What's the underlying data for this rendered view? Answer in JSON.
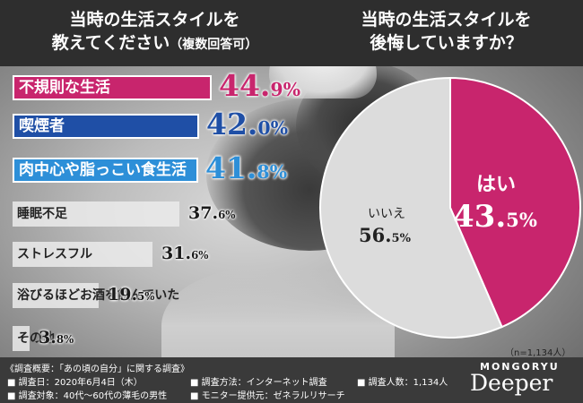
{
  "header": {
    "left_line1": "当時の生活スタイルを",
    "left_line2": "教えてください",
    "left_note": "（複数回答可）",
    "right_line1": "当時の生活スタイルを",
    "right_line2": "後悔していますか？"
  },
  "chart_data": [
    {
      "type": "bar",
      "orientation": "horizontal",
      "title": "当時の生活スタイルを教えてください（複数回答可）",
      "categories": [
        "不規則な生活",
        "喫煙者",
        "肉中心や脂っこい食生活",
        "睡眠不足",
        "ストレスフル",
        "浴びるほどお酒を飲んでいた",
        "その他"
      ],
      "values": [
        44.9,
        42.0,
        41.8,
        37.6,
        31.6,
        19.5,
        3.8
      ],
      "unit": "%",
      "value_labels": [
        {
          "int": "44.",
          "dec": "9%"
        },
        {
          "int": "42.",
          "dec": "0%"
        },
        {
          "int": "41.",
          "dec": "8%"
        },
        {
          "int": "37.",
          "dec": "6%"
        },
        {
          "int": "31.",
          "dec": "6%"
        },
        {
          "int": "19.",
          "dec": "5%"
        },
        {
          "int": "3.",
          "dec": "8%"
        }
      ],
      "colors": [
        "#c8256d",
        "#1f4fa6",
        "#2d8fd8",
        "#ebebeb",
        "#ebebeb",
        "#ebebeb",
        "#ebebeb"
      ],
      "label_colors": [
        "#c8256d",
        "#1f4fa6",
        "#2d8fd8",
        "#1a1a1a",
        "#1a1a1a",
        "#1a1a1a",
        "#1a1a1a"
      ]
    },
    {
      "type": "pie",
      "title": "当時の生活スタイルを後悔していますか？",
      "slices": [
        {
          "label": "はい",
          "value": 43.5,
          "display_int": "43.",
          "display_dec": "5%",
          "color": "#c8256d"
        },
        {
          "label": "いいえ",
          "value": 56.5,
          "display_int": "56.",
          "display_dec": "5%",
          "color": "#dcdcdc"
        }
      ],
      "sample_note": "（n=1,134人）"
    }
  ],
  "footer": {
    "title": "《調査概要：「あの頃の自分」に関する調査》",
    "items": [
      "■ 調査日：2020年6月4日（木）",
      "■ 調査方法：インターネット調査",
      "■ 調査人数：1,134人",
      "■ 調査対象：40代〜60代の薄毛の男性",
      "■ モニター提供元：ゼネラルリサーチ"
    ],
    "brand_small": "MONGORYU",
    "brand_big": "Deeper"
  }
}
